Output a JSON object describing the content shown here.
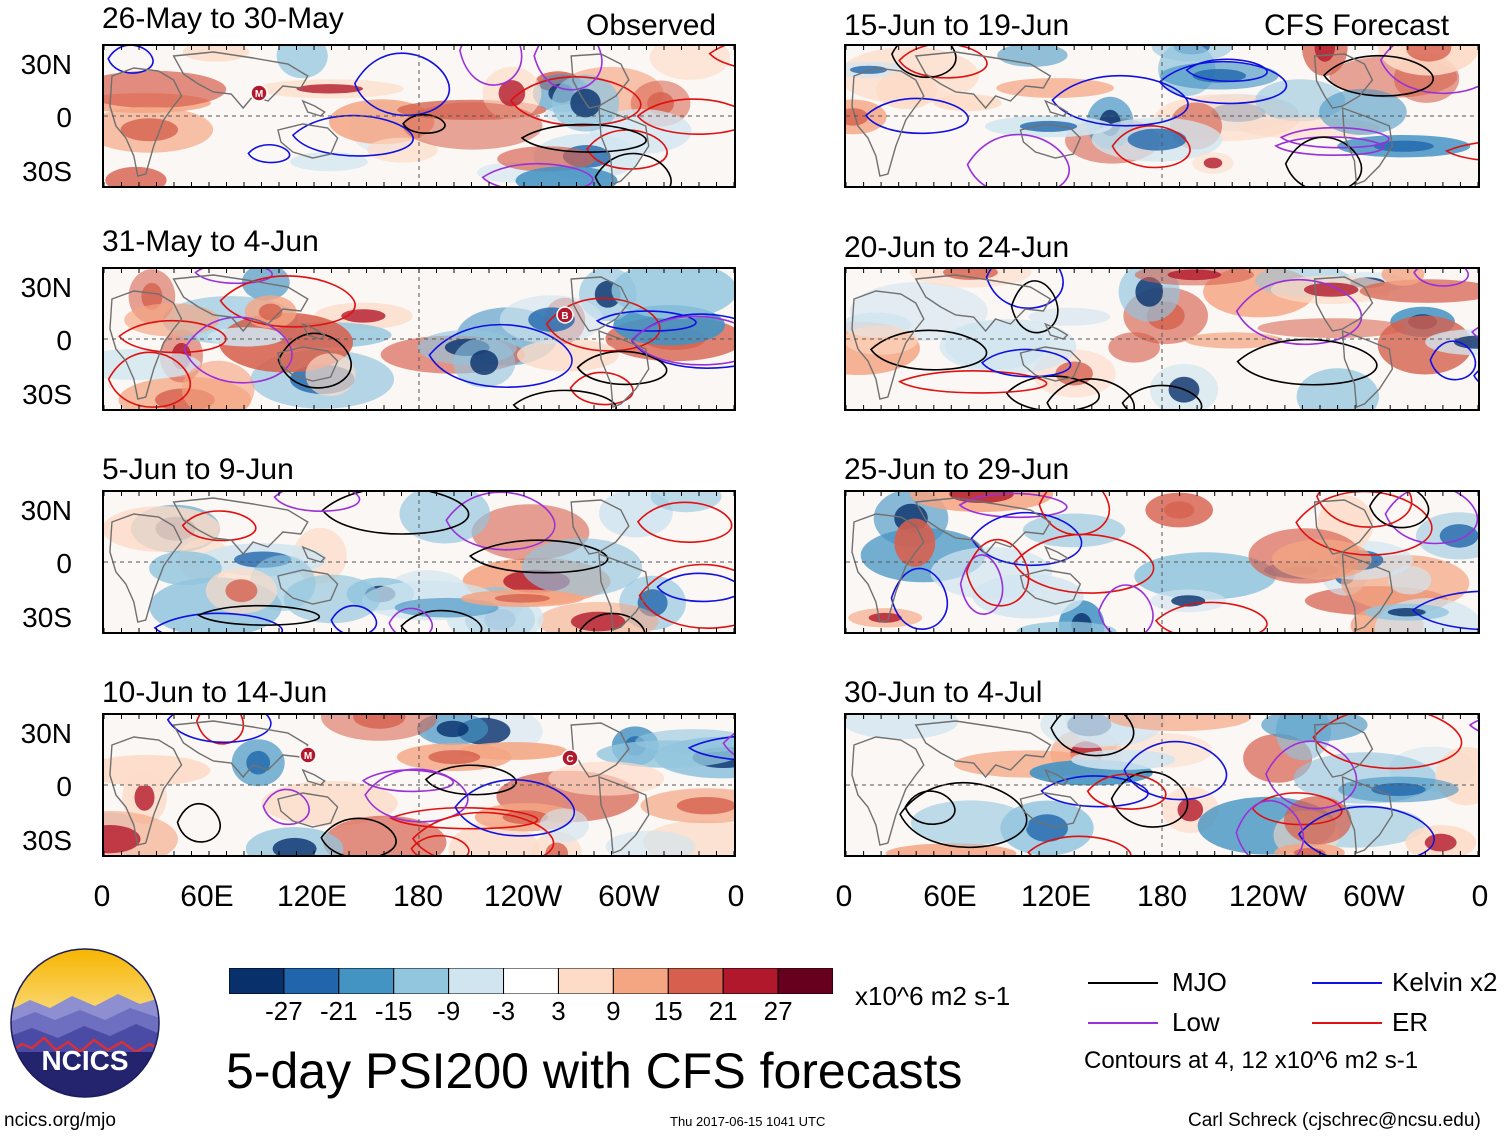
{
  "panels_left": [
    {
      "title": "26-May to 30-May",
      "tag": "Observed"
    },
    {
      "title": "31-May to 4-Jun",
      "tag": ""
    },
    {
      "title": "5-Jun to 9-Jun",
      "tag": ""
    },
    {
      "title": "10-Jun to 14-Jun",
      "tag": ""
    }
  ],
  "panels_right": [
    {
      "title": "15-Jun to 19-Jun",
      "tag": "CFS Forecast"
    },
    {
      "title": "20-Jun to 24-Jun",
      "tag": ""
    },
    {
      "title": "25-Jun to 29-Jun",
      "tag": ""
    },
    {
      "title": "30-Jun to 4-Jul",
      "tag": ""
    }
  ],
  "lat_labels": [
    "30N",
    "0",
    "30S"
  ],
  "lon_labels": [
    "0",
    "60E",
    "120E",
    "180",
    "120W",
    "60W",
    "0"
  ],
  "colorbar": {
    "colors": [
      "#08306b",
      "#2166ac",
      "#4393c3",
      "#92c5de",
      "#d1e5f0",
      "#ffffff",
      "#fddbc7",
      "#f4a582",
      "#d6604d",
      "#b2182b",
      "#67001f"
    ],
    "labels": [
      "-27",
      "-21",
      "-15",
      "-9",
      "-3",
      "3",
      "9",
      "15",
      "21",
      "27"
    ],
    "units": "x10^6 m2 s-1"
  },
  "legend": {
    "mjo": {
      "label": "MJO",
      "color": "#000000"
    },
    "kelvin": {
      "label": "Kelvin x2",
      "color": "#1010e0"
    },
    "low": {
      "label": "Low",
      "color": "#9b30d9"
    },
    "er": {
      "label": "ER",
      "color": "#e01010"
    },
    "note": "Contours at 4, 12 x10^6 m2 s-1"
  },
  "main_title": "5-day PSI200 with CFS forecasts",
  "footer": {
    "left": "ncics.org/mjo",
    "center": "Thu 2017-06-15 1041 UTC",
    "right": "Carl Schreck (cjschrec@ncsu.edu)"
  },
  "logo_text": "NCICS",
  "storm_markers": [
    {
      "panel": "left-0",
      "letter": "M"
    },
    {
      "panel": "left-1",
      "letter": "B"
    },
    {
      "panel": "left-3",
      "letter": "M"
    },
    {
      "panel": "left-3",
      "letter": "C"
    }
  ]
}
